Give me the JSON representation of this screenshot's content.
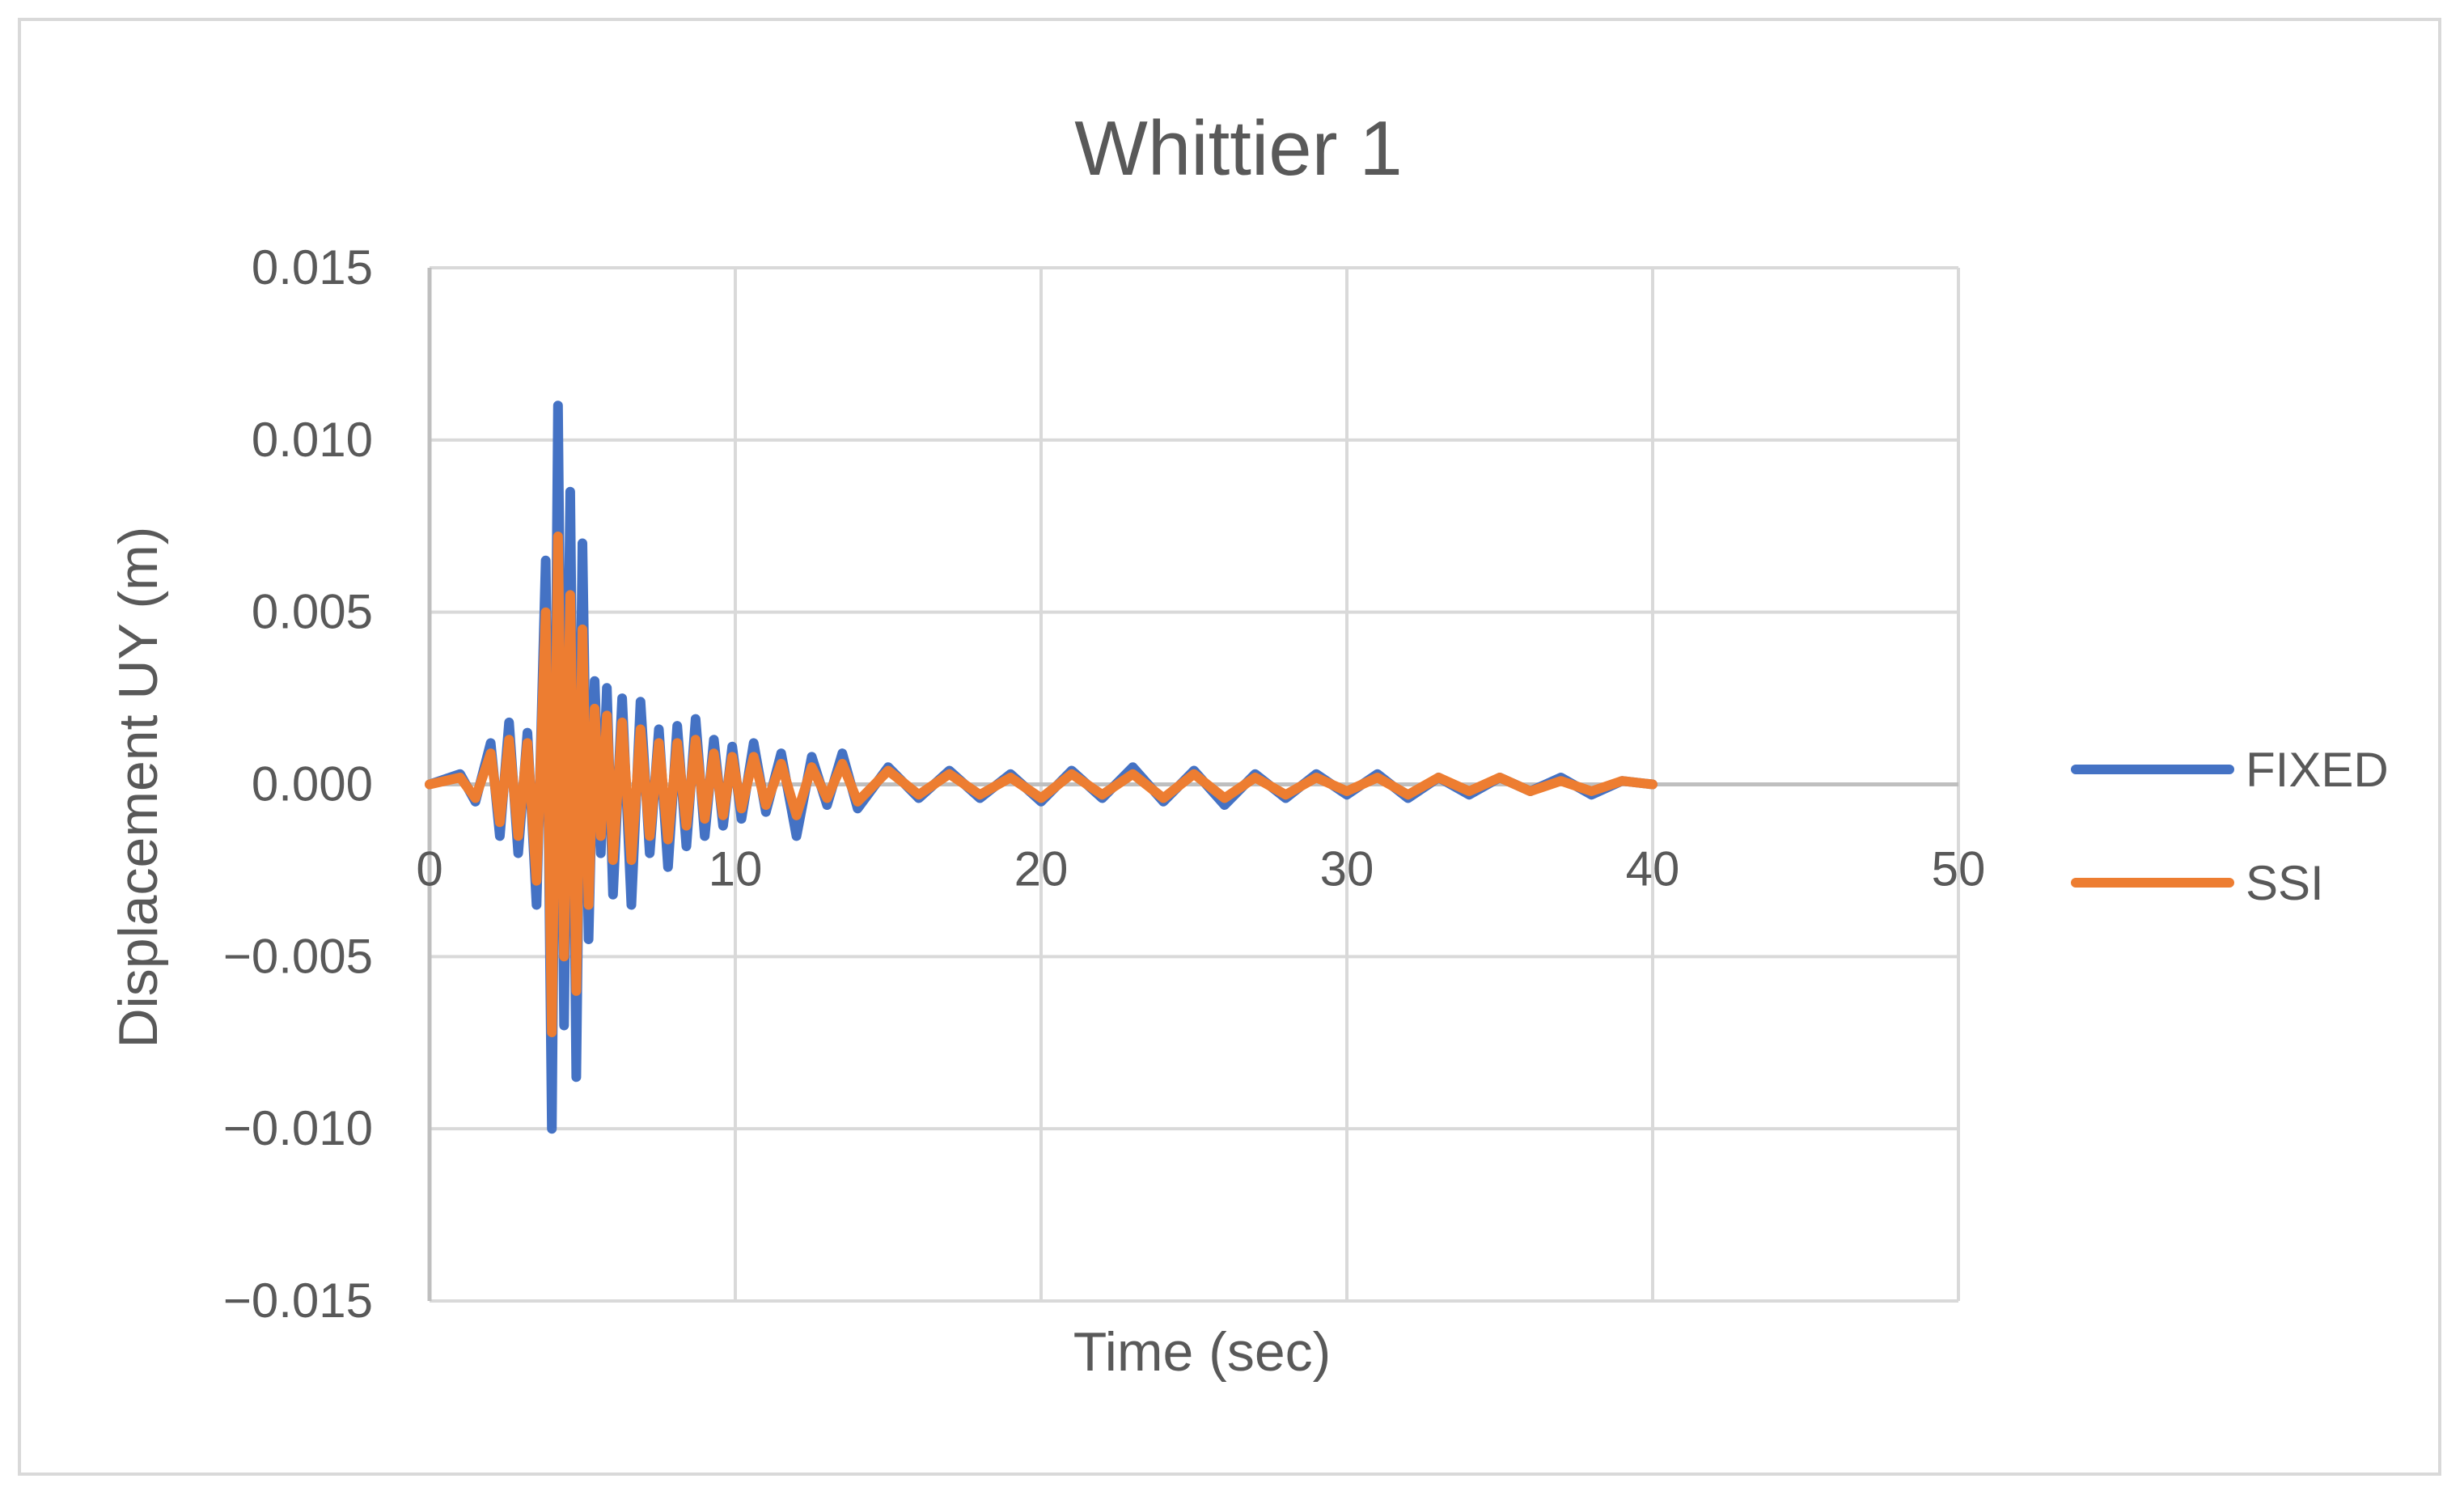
{
  "chart_data": {
    "type": "line",
    "title": "Whittier 1",
    "xlabel": "Time (sec)",
    "ylabel": "Displacement UY (m)",
    "xlim": [
      0,
      50
    ],
    "ylim": [
      -0.015,
      0.015
    ],
    "x_ticks": [
      0,
      10,
      20,
      30,
      40,
      50
    ],
    "y_ticks": [
      0.015,
      0.01,
      0.005,
      0.0,
      -0.005,
      -0.01,
      -0.015
    ],
    "x_tick_labels": [
      "0",
      "10",
      "20",
      "30",
      "40",
      "50"
    ],
    "y_tick_labels": [
      "0.015",
      "0.010",
      "0.005",
      "0.000",
      "−0.005",
      "−0.010",
      "−0.015"
    ],
    "grid": true,
    "legend_position": "right",
    "series": [
      {
        "name": "FIXED",
        "color": "#4472c4",
        "x": [
          0,
          1,
          1.5,
          2,
          2.3,
          2.6,
          2.9,
          3.2,
          3.5,
          3.8,
          4.0,
          4.2,
          4.4,
          4.6,
          4.8,
          5.0,
          5.2,
          5.4,
          5.6,
          5.8,
          6.0,
          6.3,
          6.6,
          6.9,
          7.2,
          7.5,
          7.8,
          8.1,
          8.4,
          8.7,
          9.0,
          9.3,
          9.6,
          9.9,
          10.2,
          10.6,
          11.0,
          11.5,
          12.0,
          12.5,
          13.0,
          13.5,
          14.0,
          15.0,
          16.0,
          17.0,
          18.0,
          19.0,
          20.0,
          21.0,
          22.0,
          23.0,
          24.0,
          25.0,
          26.0,
          27.0,
          28.0,
          29.0,
          30.0,
          31.0,
          32.0,
          33.0,
          34.0,
          35.0,
          36.0,
          37.0,
          38.0,
          39.0,
          40.0
        ],
        "y": [
          0.0,
          0.0003,
          -0.0005,
          0.0012,
          -0.0015,
          0.0018,
          -0.002,
          0.0015,
          -0.0035,
          0.0065,
          -0.01,
          0.011,
          -0.007,
          0.0085,
          -0.0085,
          0.007,
          -0.0045,
          0.003,
          -0.002,
          0.0028,
          -0.0032,
          0.0025,
          -0.0035,
          0.0024,
          -0.002,
          0.0016,
          -0.0024,
          0.0017,
          -0.0018,
          0.0019,
          -0.0015,
          0.0013,
          -0.0012,
          0.0011,
          -0.001,
          0.0012,
          -0.0008,
          0.0009,
          -0.0015,
          0.0008,
          -0.0006,
          0.0009,
          -0.0007,
          0.0005,
          -0.0004,
          0.0004,
          -0.0004,
          0.0003,
          -0.0005,
          0.0004,
          -0.0004,
          0.0005,
          -0.0005,
          0.0004,
          -0.0006,
          0.0003,
          -0.0004,
          0.0003,
          -0.0003,
          0.0003,
          -0.0004,
          0.0002,
          -0.0003,
          0.0002,
          -0.0002,
          0.0002,
          -0.0003,
          0.0001,
          0.0
        ]
      },
      {
        "name": "SSI",
        "color": "#ed7d31",
        "x": [
          0,
          1,
          1.5,
          2,
          2.3,
          2.6,
          2.9,
          3.2,
          3.5,
          3.8,
          4.0,
          4.2,
          4.4,
          4.6,
          4.8,
          5.0,
          5.2,
          5.4,
          5.6,
          5.8,
          6.0,
          6.3,
          6.6,
          6.9,
          7.2,
          7.5,
          7.8,
          8.1,
          8.4,
          8.7,
          9.0,
          9.3,
          9.6,
          9.9,
          10.2,
          10.6,
          11.0,
          11.5,
          12.0,
          12.5,
          13.0,
          13.5,
          14.0,
          15.0,
          16.0,
          17.0,
          18.0,
          19.0,
          20.0,
          21.0,
          22.0,
          23.0,
          24.0,
          25.0,
          26.0,
          27.0,
          28.0,
          29.0,
          30.0,
          31.0,
          32.0,
          33.0,
          34.0,
          35.0,
          36.0,
          37.0,
          38.0,
          39.0,
          40.0
        ],
        "y": [
          0.0,
          0.0002,
          -0.0004,
          0.0009,
          -0.0011,
          0.0013,
          -0.0015,
          0.0012,
          -0.0028,
          0.005,
          -0.0072,
          0.0072,
          -0.005,
          0.0055,
          -0.006,
          0.0045,
          -0.0035,
          0.0022,
          -0.0015,
          0.002,
          -0.0022,
          0.0018,
          -0.0022,
          0.0016,
          -0.0015,
          0.0012,
          -0.0016,
          0.0012,
          -0.0012,
          0.0013,
          -0.001,
          0.0009,
          -0.0009,
          0.0008,
          -0.0007,
          0.0008,
          -0.0006,
          0.0006,
          -0.0009,
          0.0005,
          -0.0004,
          0.0006,
          -0.0005,
          0.0004,
          -0.0003,
          0.0003,
          -0.0003,
          0.0002,
          -0.0004,
          0.0003,
          -0.0003,
          0.0003,
          -0.0004,
          0.0003,
          -0.0004,
          0.0002,
          -0.0003,
          0.0002,
          -0.0002,
          0.0002,
          -0.0003,
          0.0002,
          -0.0002,
          0.0002,
          -0.0002,
          0.0001,
          -0.0002,
          0.0001,
          0.0
        ]
      }
    ]
  }
}
